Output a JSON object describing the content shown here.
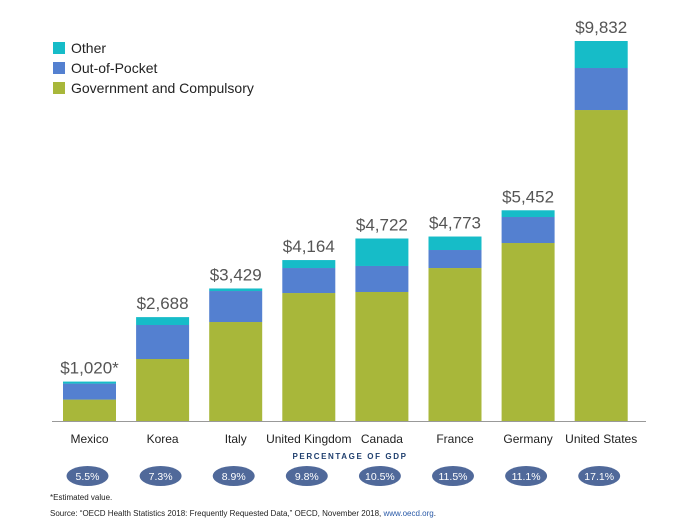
{
  "chart_data": {
    "type": "bar",
    "stacked": true,
    "title": "",
    "xlabel": "",
    "ylabel": "",
    "ylim": [
      0,
      9832
    ],
    "grid": false,
    "legend_position": "top-left",
    "categories": [
      "Mexico",
      "Korea",
      "Italy",
      "United Kingdom",
      "Canada",
      "France",
      "Germany",
      "United States"
    ],
    "totals_labels": [
      "$1,020*",
      "$2,688",
      "$3,429",
      "$4,164",
      "$4,722",
      "$4,773",
      "$5,452",
      "$9,832"
    ],
    "totals": [
      1020,
      2688,
      3429,
      4164,
      4722,
      4773,
      5452,
      9832
    ],
    "series": [
      {
        "name": "Government and Compulsory",
        "color": "#a8b73a",
        "values": [
          554,
          1604,
          2561,
          3311,
          3338,
          3958,
          4605,
          8046
        ]
      },
      {
        "name": "Out-of-Pocket",
        "color": "#5480d0",
        "values": [
          414,
          880,
          802,
          647,
          673,
          466,
          673,
          1087
        ]
      },
      {
        "name": "Other",
        "color": "#16bcc8",
        "values": [
          52,
          204,
          66,
          206,
          711,
          349,
          174,
          699
        ]
      }
    ],
    "legend_order": [
      "Other",
      "Out-of-Pocket",
      "Government and Compulsory"
    ],
    "gdp_title": "PERCENTAGE OF GDP",
    "gdp_percent": [
      "5.5%",
      "7.3%",
      "8.9%",
      "9.8%",
      "10.5%",
      "11.5%",
      "11.1%",
      "17.1%"
    ],
    "gdp_pill_color": "#50699a"
  },
  "legend": [
    {
      "label": "Other",
      "color": "#16bcc8"
    },
    {
      "label": "Out-of-Pocket",
      "color": "#5480d0"
    },
    {
      "label": "Government and Compulsory",
      "color": "#a8b73a"
    }
  ],
  "footnotes": {
    "estimated": "*Estimated value.",
    "source_prefix": "Source: “OECD Health Statistics 2018: Frequently Requested Data,” OECD, November 2018, ",
    "source_link": "www.oecd.org",
    "source_suffix": "."
  }
}
